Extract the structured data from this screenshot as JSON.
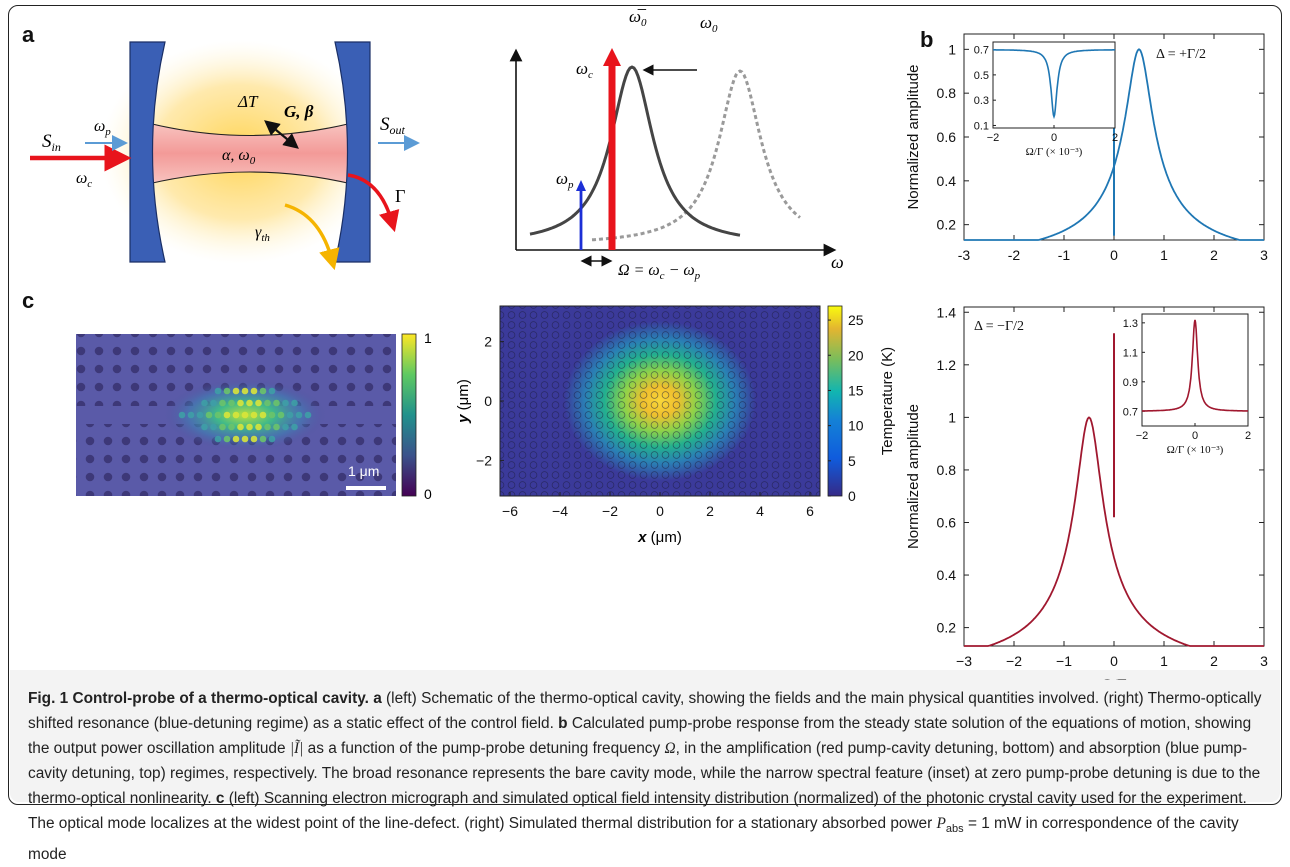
{
  "panel_labels": {
    "a": "a",
    "b": "b",
    "c": "c"
  },
  "schematic": {
    "s_in": "S",
    "s_in_sub": "in",
    "s_out": "S",
    "s_out_sub": "out",
    "omega_p": "ω",
    "omega_p_sub": "p",
    "omega_c": "ω",
    "omega_c_sub": "c",
    "delta_t": "ΔT",
    "g_beta": "G, β",
    "alpha_omega0": "α, ω",
    "alpha_omega0_sub": "0",
    "gamma_th": "γ",
    "gamma_th_sub": "th",
    "gamma": "Γ"
  },
  "resonance": {
    "omega_bar0": "ω̅",
    "omega_bar0_sub": "0",
    "omega0": "ω",
    "omega0_sub": "0",
    "omega_c": "ω",
    "omega_c_sub": "c",
    "omega_p": "ω",
    "omega_p_sub": "p",
    "detuning_eq": "Ω = ω",
    "eq_c": "c",
    "eq_minus": " − ω",
    "eq_p": "p",
    "axis_omega": "ω",
    "colors": {
      "cavity": "#454545",
      "shifted": "#9a9a9a",
      "control": "#e8141c",
      "probe": "#1c2fd6"
    }
  },
  "chart_data": [
    {
      "type": "line",
      "title": "",
      "annotation": "Δ = +Γ/2",
      "xlabel": "",
      "ylabel": "Normalized amplitude",
      "xlim": [
        -3,
        3
      ],
      "ylim": [
        0.13,
        1.07
      ],
      "xticks": [
        -3,
        -2,
        -1,
        0,
        1,
        2,
        3
      ],
      "yticks": [
        0.2,
        0.4,
        0.6,
        0.8,
        1
      ],
      "color": "#1f77b4",
      "series": [
        {
          "x": [
            -3,
            -2.5,
            -2,
            -1.5,
            -1,
            -0.5,
            0,
            0.25,
            0.5,
            0.75,
            1,
            1.5,
            2,
            2.5,
            3
          ],
          "y": [
            0.141,
            0.16,
            0.186,
            0.226,
            0.294,
            0.415,
            0.617,
            0.853,
            1.0,
            0.853,
            0.617,
            0.415,
            0.294,
            0.226,
            0.186
          ]
        }
      ],
      "notch": {
        "x": 0,
        "y_low": 0.15,
        "y_high": 0.7
      },
      "inset": {
        "type": "line",
        "xlabel": "Ω/Γ (× 10⁻³)",
        "xlim": [
          -2,
          2
        ],
        "ylim": [
          0.08,
          0.76
        ],
        "xticks": [
          -2,
          0,
          2
        ],
        "yticks": [
          0.1,
          0.3,
          0.5,
          0.7
        ],
        "series": [
          {
            "x": [
              -2,
              -1.5,
              -1,
              -0.6,
              -0.4,
              -0.2,
              -0.1,
              0,
              0.1,
              0.2,
              0.4,
              0.6,
              1,
              1.5,
              2
            ],
            "y": [
              0.7,
              0.69,
              0.67,
              0.62,
              0.55,
              0.4,
              0.27,
              0.17,
              0.27,
              0.4,
              0.55,
              0.62,
              0.67,
              0.69,
              0.7
            ]
          }
        ]
      }
    },
    {
      "type": "line",
      "title": "",
      "annotation": "Δ = −Γ/2",
      "xlabel": "Ω/Γ",
      "ylabel": "Normalized amplitude",
      "xlim": [
        -3,
        3
      ],
      "ylim": [
        0.13,
        1.42
      ],
      "xticks": [
        -3,
        -2,
        -1,
        0,
        1,
        2,
        3
      ],
      "xtick_labels": [
        "−3",
        "−2",
        "−1",
        "0",
        "1",
        "2",
        "3"
      ],
      "yticks": [
        0.2,
        0.4,
        0.6,
        0.8,
        1,
        1.2,
        1.4
      ],
      "color": "#a0182f",
      "series": [
        {
          "x": [
            -3,
            -2.5,
            -2,
            -1.5,
            -1,
            -0.75,
            -0.5,
            -0.25,
            0,
            0.5,
            1,
            1.5,
            2,
            2.5,
            3
          ],
          "y": [
            0.186,
            0.226,
            0.294,
            0.415,
            0.617,
            0.853,
            1.0,
            0.853,
            0.617,
            0.415,
            0.294,
            0.226,
            0.186,
            0.16,
            0.141
          ]
        }
      ],
      "spike": {
        "x": 0,
        "y_low": 0.62,
        "y_high": 1.32
      },
      "inset": {
        "type": "line",
        "xlabel": "Ω/Γ (× 10⁻³)",
        "xlim": [
          -2,
          2
        ],
        "ylim": [
          0.6,
          1.36
        ],
        "xticks": [
          -2,
          0,
          2
        ],
        "yticks": [
          0.7,
          0.9,
          1.1,
          1.3
        ],
        "series": [
          {
            "x": [
              -2,
              -1.5,
              -1,
              -0.6,
              -0.4,
              -0.2,
              -0.1,
              0,
              0.1,
              0.2,
              0.4,
              0.6,
              1,
              1.5,
              2
            ],
            "y": [
              0.7,
              0.7,
              0.71,
              0.72,
              0.74,
              0.8,
              0.95,
              1.32,
              0.95,
              0.8,
              0.74,
              0.72,
              0.71,
              0.7,
              0.7
            ]
          }
        ]
      }
    },
    {
      "type": "heatmap",
      "title": "",
      "colorbar_ticks": [
        "0",
        "1"
      ],
      "scalebar": "1 μm"
    },
    {
      "type": "heatmap",
      "title": "",
      "xlabel": "x (μm)",
      "xlabel_var": "x",
      "xlabel_unit": " (μm)",
      "ylabel": "y (μm)",
      "ylabel_var": "y",
      "ylabel_unit": " (μm)",
      "xticks": [
        -6,
        -4,
        -2,
        0,
        2,
        4,
        6
      ],
      "yticks": [
        -2,
        0,
        2
      ],
      "xlim": [
        -6.4,
        6.4
      ],
      "ylim": [
        -3.2,
        3.2
      ],
      "colorbar_label": "Temperature (K)",
      "colorbar_ticks": [
        0,
        5,
        10,
        15,
        20,
        25
      ],
      "clim": [
        0,
        27
      ]
    }
  ],
  "caption": {
    "lead": "Fig. 1 Control-probe of a thermo-optical cavity.",
    "a_label": "a",
    "a_text": " (left) Schematic of the thermo-optical cavity, showing the fields and the main physical quantities involved. (right) Thermo-optically shifted resonance (blue-detuning regime) as a static effect of the control field.",
    "b_label": "b",
    "b_text1": " Calculated pump-probe response from the steady state solution of the equations of motion, showing the output power oscillation amplitude ",
    "b_sym": "|Ĩ|",
    "b_text2": " as a function of the pump-probe detuning frequency ",
    "b_omega": "Ω",
    "b_text3": ", in the amplification (red pump-cavity detuning, bottom) and absorption (blue pump-cavity detuning, top) regimes, respectively. The broad resonance represents the bare cavity mode, while the narrow spectral feature (inset) at zero pump-probe detuning is due to the thermo-optical nonlinearity.",
    "c_label": "c",
    "c_text1": " (left) Scanning electron micrograph and simulated optical field intensity distribution (normalized) of the photonic crystal cavity used for the experiment. The optical mode localizes at the widest point of the line-defect. (right) Simulated thermal distribution for a stationary absorbed power ",
    "c_p": "P",
    "c_p_sub": "abs",
    "c_text2": " = 1 mW in correspondence of the cavity mode"
  }
}
